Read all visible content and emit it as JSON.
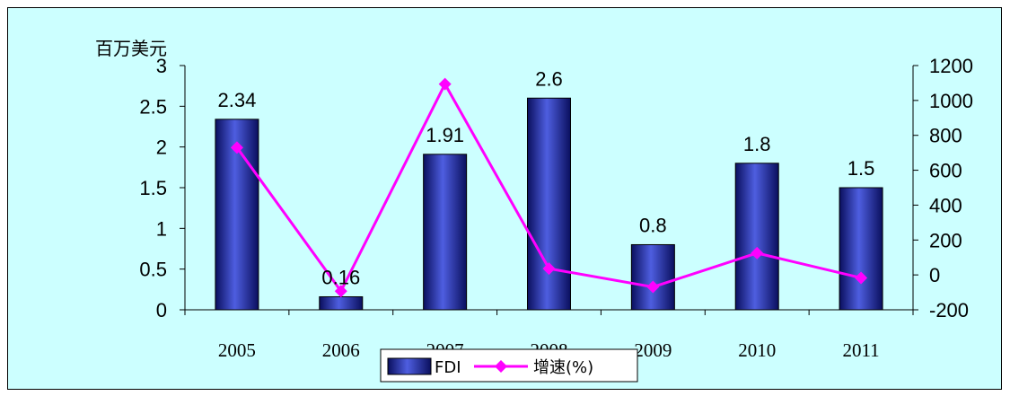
{
  "chart_data": {
    "type": "bar",
    "categories": [
      "2005",
      "2006",
      "2007",
      "2008",
      "2009",
      "2010",
      "2011"
    ],
    "series": [
      {
        "name": "FDI",
        "type": "bar",
        "axis": "left",
        "values": [
          2.34,
          0.16,
          1.91,
          2.6,
          0.8,
          1.8,
          1.5
        ],
        "data_labels": [
          "2.34",
          "0.16",
          "1.91",
          "2.6",
          "0.8",
          "1.8",
          "1.5"
        ],
        "color": "#2a36a8"
      },
      {
        "name": "增速(%)",
        "type": "line",
        "axis": "right",
        "values": [
          730,
          -93,
          1094,
          36,
          -69,
          125,
          -17
        ],
        "color": "#ff00ff"
      }
    ],
    "left_axis": {
      "label": "百万美元",
      "ylim": [
        0,
        3
      ],
      "ticks": [
        "0",
        "0.5",
        "1",
        "1.5",
        "2",
        "2.5",
        "3"
      ]
    },
    "right_axis": {
      "ylim": [
        -200,
        1200
      ],
      "ticks": [
        "-200",
        "0",
        "200",
        "400",
        "600",
        "800",
        "1000",
        "1200"
      ]
    },
    "grid": false,
    "legend_position": "bottom-center",
    "background": "#ccffff"
  }
}
